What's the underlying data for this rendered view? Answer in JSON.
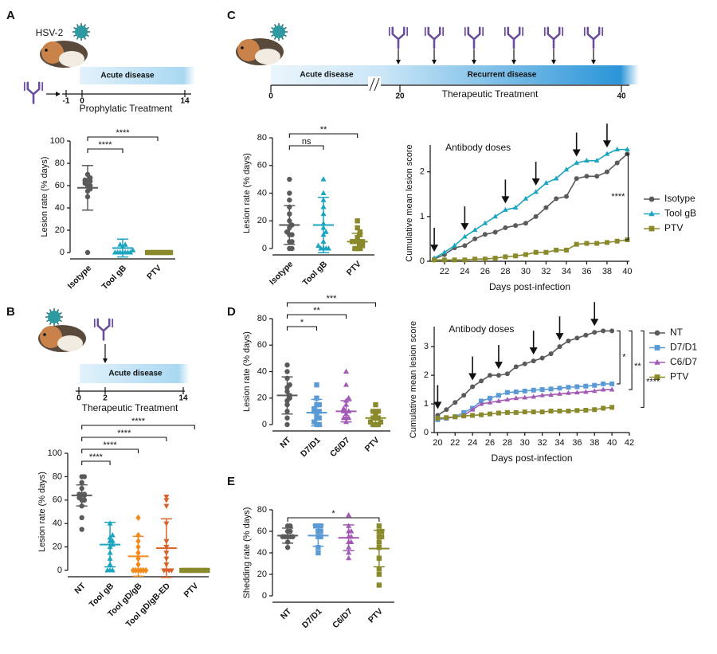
{
  "panel_letters": [
    "A",
    "B",
    "C",
    "D",
    "E"
  ],
  "schematics": [
    {
      "virus_label": "HSV-2",
      "bar_labels": [
        "Acute disease"
      ],
      "ticks": [
        -1,
        0,
        14
      ],
      "caption": "Prophylatic Treatment"
    },
    {
      "bar_labels": [
        "Acute disease"
      ],
      "ticks": [
        0,
        2,
        14
      ],
      "caption": "Therapeutic Treatment"
    },
    {
      "bar_labels": [
        "Acute disease",
        "Recurrent disease"
      ],
      "ticks": [
        0,
        20,
        40
      ],
      "caption": "Therapeutic Treatment"
    }
  ],
  "chart_data": [
    {
      "type": "dotplot",
      "ylabel": "Lesion rate (% days)",
      "ylim": [
        0,
        100
      ],
      "yticks": [
        0,
        20,
        40,
        60,
        80,
        100
      ],
      "categories": [
        "Isotype",
        "Tool gB",
        "PTV"
      ],
      "groups": [
        {
          "color": "#5a5a5a",
          "marker": "circle",
          "points": [
            0,
            50,
            55,
            57,
            60,
            60,
            62,
            64,
            64,
            65,
            67,
            70
          ],
          "mean": 58,
          "sd": 20
        },
        {
          "color": "#1ba5bf",
          "marker": "triangle",
          "points": [
            0,
            0,
            0,
            0,
            0,
            0,
            0,
            2,
            5,
            7,
            7
          ],
          "mean": 4,
          "sd": 8
        },
        {
          "color": "#8a8a2c",
          "marker": "square",
          "points": [
            0,
            0,
            0,
            0,
            0,
            0,
            0,
            0,
            0,
            0
          ],
          "mean": 0,
          "sd": 0
        }
      ],
      "comparisons": [
        {
          "between": [
            "Isotype",
            "Tool gB"
          ],
          "label": "****"
        },
        {
          "between": [
            "Isotype",
            "PTV"
          ],
          "label": "****"
        }
      ]
    },
    {
      "type": "dotplot",
      "ylabel": "Lesion rate (% days)",
      "ylim": [
        0,
        100
      ],
      "yticks": [
        0,
        20,
        40,
        60,
        80,
        100
      ],
      "categories": [
        "NT",
        "Tool gB",
        "Tool gD/gB",
        "Tool gD/gB-ED",
        "PTV"
      ],
      "groups": [
        {
          "color": "#5a5a5a",
          "marker": "circle",
          "points": [
            35,
            45,
            55,
            60,
            60,
            62,
            64,
            65,
            65,
            70,
            75,
            80,
            80
          ],
          "mean": 64,
          "sd": 9
        },
        {
          "color": "#1ba5bf",
          "marker": "triangle",
          "points": [
            0,
            0,
            0,
            5,
            10,
            15,
            20,
            22,
            25,
            25,
            28,
            30,
            40
          ],
          "mean": 22,
          "sd": 19
        },
        {
          "color": "#f28a1e",
          "marker": "diamond",
          "points": [
            0,
            0,
            0,
            0,
            0,
            0,
            5,
            10,
            15,
            20,
            25,
            30,
            45
          ],
          "mean": 12,
          "sd": 17
        },
        {
          "color": "#d9622a",
          "marker": "triangle-down",
          "points": [
            0,
            0,
            0,
            0,
            5,
            10,
            15,
            20,
            25,
            40,
            55,
            60,
            63
          ],
          "mean": 19,
          "sd": 25
        },
        {
          "color": "#8a8a2c",
          "marker": "square",
          "points": [
            0,
            0,
            0,
            0,
            0,
            0,
            0,
            0,
            0,
            0,
            0
          ],
          "mean": 0,
          "sd": 0
        }
      ],
      "comparisons": [
        {
          "between": [
            "NT",
            "Tool gB"
          ],
          "label": "****"
        },
        {
          "between": [
            "NT",
            "Tool gD/gB"
          ],
          "label": "****"
        },
        {
          "between": [
            "NT",
            "Tool gD/gB-ED"
          ],
          "label": "****"
        },
        {
          "between": [
            "NT",
            "PTV"
          ],
          "label": "****"
        }
      ]
    },
    {
      "type": "dotplot",
      "ylabel": "Lesion rate (% days)",
      "ylim": [
        0,
        80
      ],
      "yticks": [
        0,
        20,
        40,
        60,
        80
      ],
      "categories": [
        "Isotype",
        "Tool gB",
        "PTV"
      ],
      "groups": [
        {
          "color": "#5a5a5a",
          "marker": "circle",
          "points": [
            0,
            0,
            5,
            5,
            10,
            10,
            12,
            15,
            17,
            20,
            25,
            30,
            35,
            40,
            50
          ],
          "mean": 17,
          "sd": 14
        },
        {
          "color": "#1ba5bf",
          "marker": "triangle",
          "points": [
            0,
            0,
            0,
            0,
            2,
            5,
            10,
            12,
            15,
            18,
            25,
            30,
            35,
            40,
            50
          ],
          "mean": 17,
          "sd": 20
        },
        {
          "color": "#8a8a2c",
          "marker": "square",
          "points": [
            0,
            0,
            0,
            2,
            3,
            5,
            5,
            5,
            5,
            8,
            10,
            12,
            15,
            20
          ],
          "mean": 5,
          "sd": 6
        }
      ],
      "comparisons": [
        {
          "between": [
            "Isotype",
            "Tool gB"
          ],
          "label": "ns"
        },
        {
          "between": [
            "Isotype",
            "PTV"
          ],
          "label": "**"
        }
      ]
    },
    {
      "type": "line",
      "xlabel": "Days post-infection",
      "ylabel": "Cumulative mean lesion score",
      "annotation": "Antibody doses",
      "x": [
        21,
        22,
        23,
        24,
        25,
        26,
        27,
        28,
        29,
        30,
        31,
        32,
        33,
        34,
        35,
        36,
        37,
        38,
        39,
        40
      ],
      "xlim": [
        20.6,
        40.2
      ],
      "xticks": [
        22,
        24,
        26,
        28,
        30,
        32,
        34,
        36,
        38,
        40
      ],
      "ylim": [
        0,
        2.6
      ],
      "yticks": [
        0,
        1,
        2
      ],
      "dose_days": [
        21,
        24,
        28,
        31,
        35,
        38
      ],
      "legend": "right",
      "series": [
        {
          "name": "Isotype",
          "color": "#5a5a5a",
          "marker": "circle",
          "values": [
            0.05,
            0.15,
            0.3,
            0.35,
            0.5,
            0.6,
            0.65,
            0.75,
            0.8,
            0.85,
            1.0,
            1.2,
            1.4,
            1.45,
            1.85,
            1.9,
            1.9,
            2.0,
            2.2,
            2.4
          ]
        },
        {
          "name": "Tool gB",
          "color": "#1ba5bf",
          "marker": "triangle",
          "values": [
            0.07,
            0.2,
            0.35,
            0.55,
            0.7,
            0.85,
            1.0,
            1.15,
            1.2,
            1.4,
            1.55,
            1.75,
            1.85,
            2.05,
            2.2,
            2.25,
            2.25,
            2.4,
            2.5,
            2.5
          ]
        },
        {
          "name": "PTV",
          "color": "#8a8a2c",
          "marker": "square",
          "values": [
            0.03,
            0.03,
            0.03,
            0.03,
            0.05,
            0.05,
            0.07,
            0.1,
            0.12,
            0.15,
            0.2,
            0.2,
            0.25,
            0.25,
            0.38,
            0.4,
            0.4,
            0.42,
            0.45,
            0.48
          ]
        }
      ],
      "comparisons": [
        {
          "between": [
            "Isotype",
            "PTV"
          ],
          "label": "****"
        }
      ]
    },
    {
      "type": "dotplot",
      "ylabel": "Lesion rate (% days)",
      "ylim": [
        0,
        80
      ],
      "yticks": [
        0,
        20,
        40,
        60,
        80
      ],
      "categories": [
        "NT",
        "D7/D1",
        "C6/D7",
        "PTV"
      ],
      "groups": [
        {
          "color": "#5a5a5a",
          "marker": "circle",
          "points": [
            0,
            5,
            10,
            15,
            18,
            20,
            22,
            25,
            28,
            30,
            35,
            40,
            45
          ],
          "mean": 22,
          "sd": 14
        },
        {
          "color": "#5b9bd5",
          "marker": "square",
          "points": [
            0,
            0,
            2,
            5,
            5,
            8,
            10,
            10,
            12,
            15,
            15,
            20,
            30
          ],
          "mean": 9,
          "sd": 10
        },
        {
          "color": "#a25bb5",
          "marker": "triangle",
          "points": [
            2,
            5,
            5,
            5,
            8,
            10,
            10,
            12,
            15,
            18,
            20,
            30,
            40
          ],
          "mean": 10,
          "sd": 8
        },
        {
          "color": "#8a8a2c",
          "marker": "square",
          "points": [
            0,
            0,
            0,
            2,
            2,
            5,
            5,
            5,
            8,
            10,
            10,
            15
          ],
          "mean": 5,
          "sd": 5
        }
      ],
      "comparisons": [
        {
          "between": [
            "NT",
            "D7/D1"
          ],
          "label": "*"
        },
        {
          "between": [
            "NT",
            "C6/D7"
          ],
          "label": "**"
        },
        {
          "between": [
            "NT",
            "PTV"
          ],
          "label": "***"
        }
      ]
    },
    {
      "type": "line",
      "xlabel": "Days post-infection",
      "ylabel": "Cumulative mean lesion score",
      "annotation": "Antibody doses",
      "x": [
        20,
        21,
        22,
        23,
        24,
        25,
        26,
        27,
        28,
        29,
        30,
        31,
        32,
        33,
        34,
        35,
        36,
        37,
        38,
        39,
        40
      ],
      "xlim": [
        19.6,
        42
      ],
      "xticks": [
        20,
        22,
        24,
        26,
        28,
        30,
        32,
        34,
        36,
        38,
        40,
        42
      ],
      "ylim": [
        0,
        3.7
      ],
      "yticks": [
        0,
        1,
        2,
        3
      ],
      "dose_days": [
        20,
        24,
        27,
        31,
        34,
        38
      ],
      "legend": "right",
      "series": [
        {
          "name": "NT",
          "color": "#5a5a5a",
          "marker": "circle",
          "values": [
            0.6,
            0.8,
            1.05,
            1.3,
            1.6,
            1.8,
            2.0,
            2.0,
            2.05,
            2.3,
            2.4,
            2.5,
            2.6,
            2.75,
            3.0,
            3.2,
            3.3,
            3.4,
            3.5,
            3.55,
            3.55
          ]
        },
        {
          "name": "D7/D1",
          "color": "#5b9bd5",
          "marker": "square",
          "values": [
            0.45,
            0.5,
            0.55,
            0.7,
            0.85,
            1.1,
            1.2,
            1.3,
            1.4,
            1.42,
            1.45,
            1.48,
            1.5,
            1.52,
            1.55,
            1.58,
            1.6,
            1.62,
            1.65,
            1.7,
            1.7
          ]
        },
        {
          "name": "C6/D7",
          "color": "#a25bb5",
          "marker": "triangle",
          "values": [
            0.5,
            0.5,
            0.55,
            0.6,
            0.8,
            1.0,
            1.05,
            1.1,
            1.15,
            1.2,
            1.22,
            1.25,
            1.3,
            1.32,
            1.35,
            1.38,
            1.4,
            1.42,
            1.45,
            1.5,
            1.5
          ]
        },
        {
          "name": "PTV",
          "color": "#8a8a2c",
          "marker": "square",
          "values": [
            0.5,
            0.52,
            0.55,
            0.58,
            0.6,
            0.62,
            0.65,
            0.68,
            0.7,
            0.7,
            0.72,
            0.72,
            0.72,
            0.75,
            0.75,
            0.75,
            0.77,
            0.78,
            0.8,
            0.85,
            0.88
          ]
        }
      ],
      "comparisons": [
        {
          "between": [
            "NT",
            "D7/D1"
          ],
          "label": "*"
        },
        {
          "between": [
            "NT",
            "C6/D7"
          ],
          "label": "**"
        },
        {
          "between": [
            "NT",
            "PTV"
          ],
          "label": "****"
        }
      ]
    },
    {
      "type": "dotplot",
      "ylabel": "Shedding rate (% days)",
      "ylim": [
        0,
        80
      ],
      "yticks": [
        0,
        20,
        40,
        60,
        80
      ],
      "categories": [
        "NT",
        "D7/D1",
        "C6/D7",
        "PTV"
      ],
      "groups": [
        {
          "color": "#5a5a5a",
          "marker": "circle",
          "points": [
            45,
            50,
            55,
            55,
            55,
            55,
            55,
            60,
            60,
            65,
            65
          ],
          "mean": 56,
          "sd": 7
        },
        {
          "color": "#5b9bd5",
          "marker": "square",
          "points": [
            40,
            45,
            55,
            55,
            60,
            60,
            65,
            65,
            65
          ],
          "mean": 56,
          "sd": 10
        },
        {
          "color": "#a25bb5",
          "marker": "triangle",
          "points": [
            35,
            40,
            45,
            50,
            50,
            55,
            55,
            60,
            60,
            65,
            75
          ],
          "mean": 54,
          "sd": 12
        },
        {
          "color": "#8a8a2c",
          "marker": "square",
          "points": [
            10,
            20,
            25,
            35,
            45,
            50,
            55,
            55,
            60,
            60,
            65
          ],
          "mean": 44,
          "sd": 17
        }
      ],
      "comparisons": [
        {
          "between": [
            "NT",
            "PTV"
          ],
          "label": "*"
        }
      ]
    }
  ]
}
